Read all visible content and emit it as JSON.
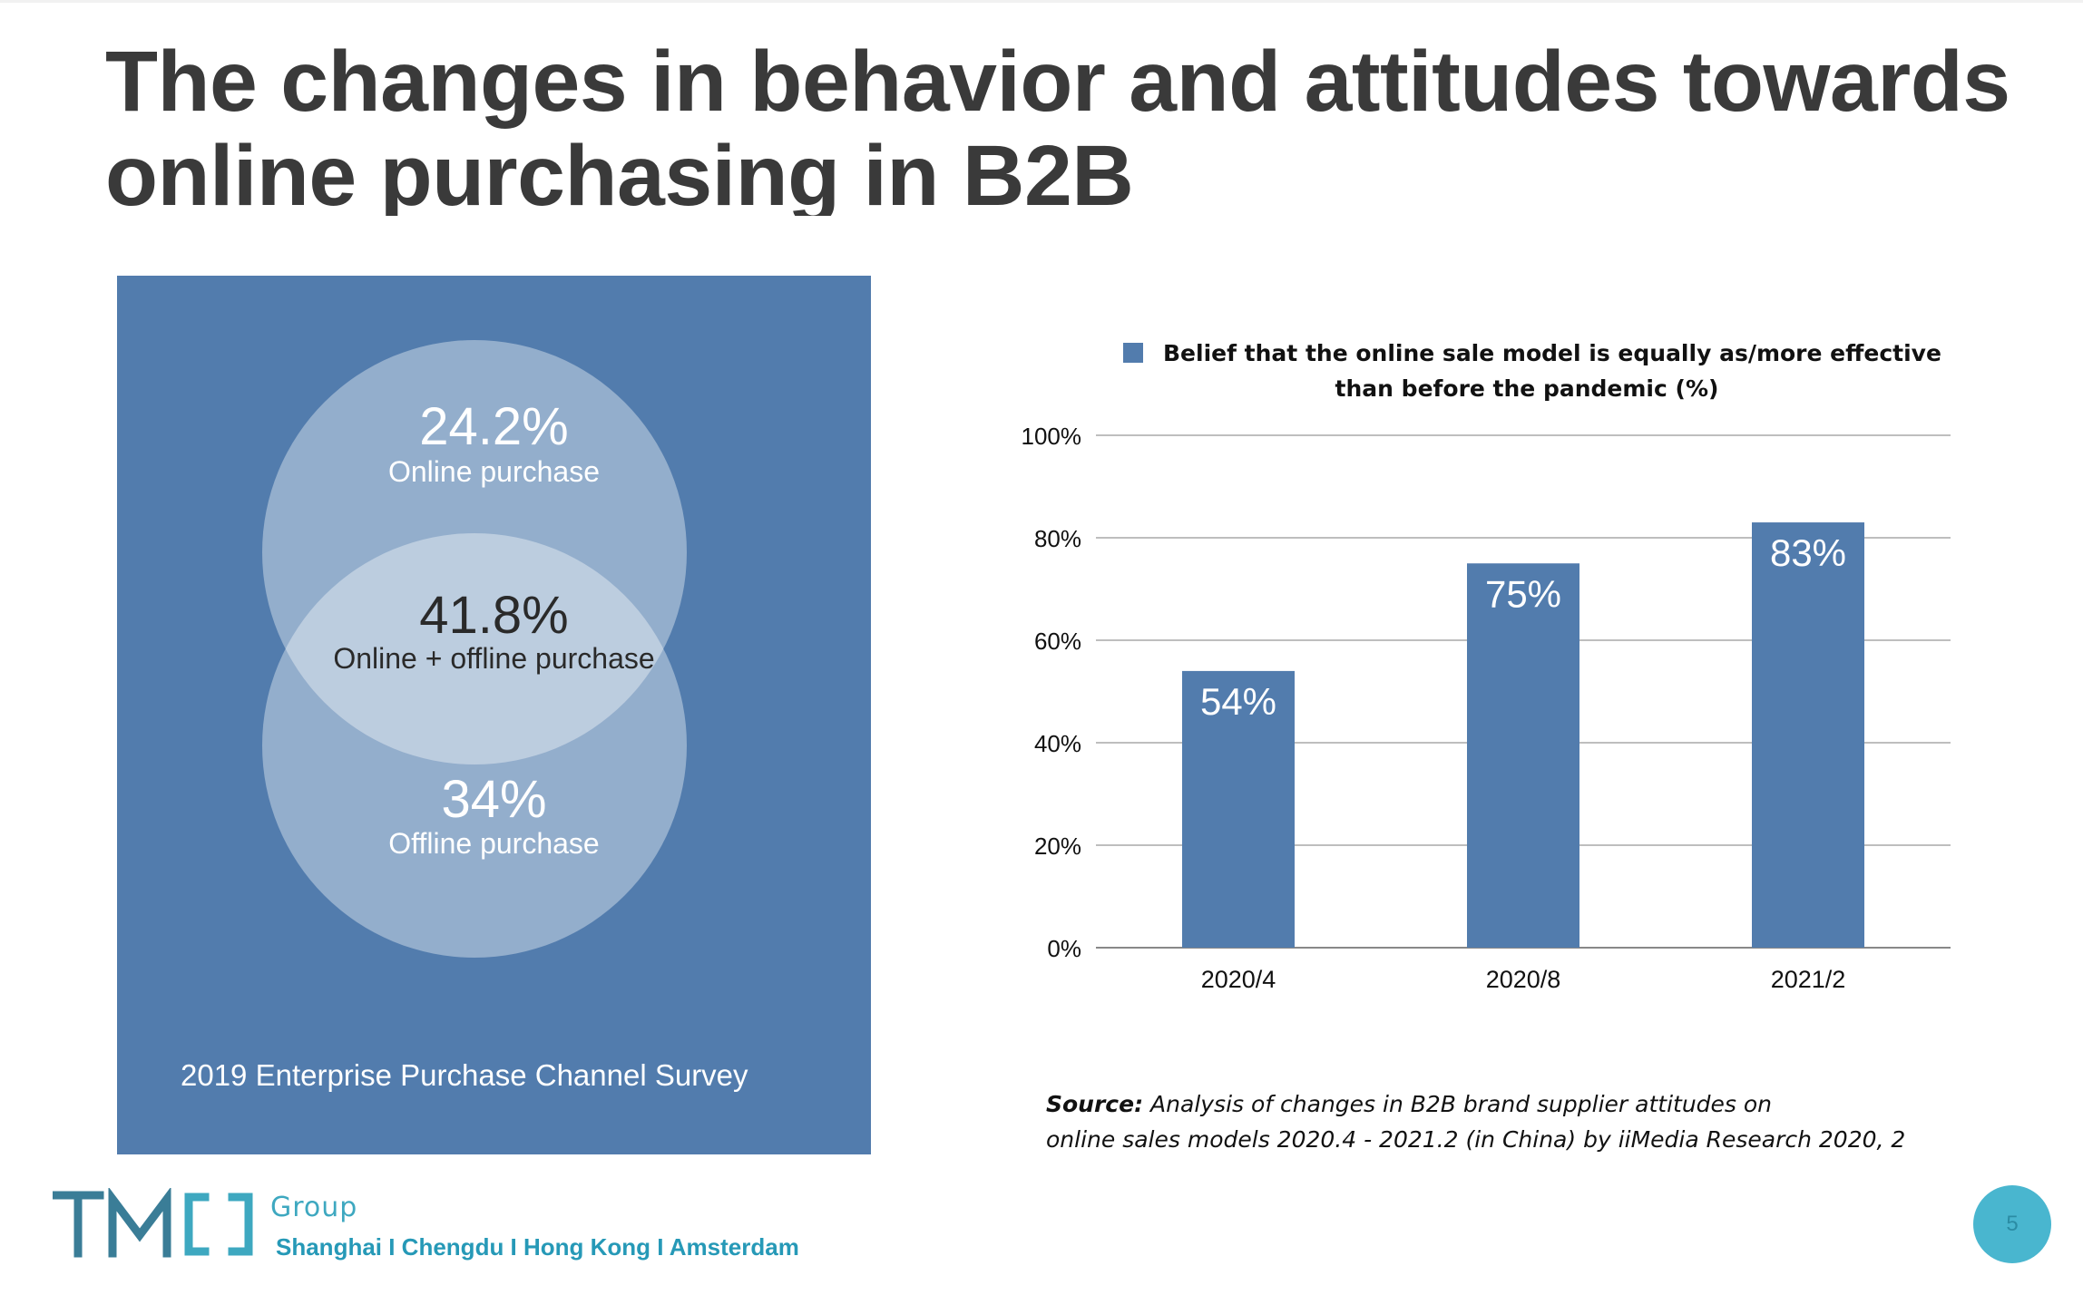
{
  "slide": {
    "title_line1": "The changes in behavior and attitudes towards",
    "title_line2": "online purchasing in B2B",
    "page_number": "5"
  },
  "venn": {
    "online": {
      "value": "24.2%",
      "label": "Online purchase"
    },
    "both": {
      "value": "41.8%",
      "label": "Online + offline purchase"
    },
    "offline": {
      "value": "34%",
      "label": "Offline purchase"
    },
    "caption": "2019 Enterprise Purchase Channel Survey"
  },
  "chart_data": {
    "type": "bar",
    "title": "Belief that the online sale model is equally as/more effective than before the pandemic (%)",
    "legend": {
      "entries": [
        "Belief that the online sale model is equally as/more effective than before the pandemic (%)"
      ],
      "line1": "Belief that the online sale model is equally as/more effective",
      "line2": "than before the pandemic (%)",
      "placement": "top"
    },
    "categories": [
      "2020/4",
      "2020/8",
      "2021/2"
    ],
    "values": [
      54,
      75,
      83
    ],
    "data_labels": [
      "54%",
      "75%",
      "83%"
    ],
    "ylim": [
      0,
      100
    ],
    "yticks": [
      0,
      20,
      40,
      60,
      80,
      100
    ],
    "ytick_labels": [
      "0%",
      "20%",
      "40%",
      "60%",
      "80%",
      "100%"
    ],
    "grid": true,
    "xlabel": "",
    "ylabel": "",
    "bar_color": "#527cad"
  },
  "source": {
    "label": "Source:",
    "line1": "Analysis of changes in B2B brand supplier attitudes on",
    "line2": "online sales models 2020.4 - 2021.2 (in China)  by iiMedia Research 2020, 2"
  },
  "footer": {
    "logo_text": "TMO",
    "group_text": "Group",
    "offices": "Shanghai  I Chengdu I Hong Kong  I  Amsterdam"
  },
  "colors": {
    "panel": "#527cad",
    "bar": "#527cad",
    "accent": "#3ea8c0",
    "title": "#3a3a3a"
  }
}
